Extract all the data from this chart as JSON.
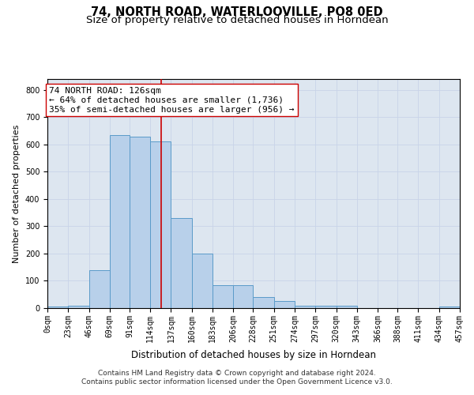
{
  "title": "74, NORTH ROAD, WATERLOOVILLE, PO8 0ED",
  "subtitle": "Size of property relative to detached houses in Horndean",
  "xlabel": "Distribution of detached houses by size in Horndean",
  "ylabel": "Number of detached properties",
  "bar_values": [
    5,
    10,
    140,
    635,
    630,
    610,
    330,
    200,
    85,
    85,
    40,
    25,
    10,
    10,
    8,
    0,
    0,
    0,
    0,
    5
  ],
  "bin_edges": [
    0,
    23,
    46,
    69,
    91,
    114,
    137,
    160,
    183,
    206,
    228,
    251,
    274,
    297,
    320,
    343,
    366,
    388,
    411,
    434,
    457
  ],
  "tick_labels": [
    "0sqm",
    "23sqm",
    "46sqm",
    "69sqm",
    "91sqm",
    "114sqm",
    "137sqm",
    "160sqm",
    "183sqm",
    "206sqm",
    "228sqm",
    "251sqm",
    "274sqm",
    "297sqm",
    "320sqm",
    "343sqm",
    "366sqm",
    "388sqm",
    "411sqm",
    "434sqm",
    "457sqm"
  ],
  "bar_color": "#b8d0ea",
  "bar_edge_color": "#5a9bc9",
  "vline_x": 126,
  "vline_color": "#cc0000",
  "annotation_line1": "74 NORTH ROAD: 126sqm",
  "annotation_line2": "← 64% of detached houses are smaller (1,736)",
  "annotation_line3": "35% of semi-detached houses are larger (956) →",
  "annotation_box_color": "#ffffff",
  "annotation_box_edge": "#cc0000",
  "ylim": [
    0,
    840
  ],
  "yticks": [
    0,
    100,
    200,
    300,
    400,
    500,
    600,
    700,
    800
  ],
  "grid_color": "#c8d4e8",
  "background_color": "#dde6f0",
  "footer_text": "Contains HM Land Registry data © Crown copyright and database right 2024.\nContains public sector information licensed under the Open Government Licence v3.0.",
  "title_fontsize": 10.5,
  "subtitle_fontsize": 9.5,
  "xlabel_fontsize": 8.5,
  "ylabel_fontsize": 8,
  "tick_fontsize": 7,
  "annotation_fontsize": 8,
  "footer_fontsize": 6.5
}
